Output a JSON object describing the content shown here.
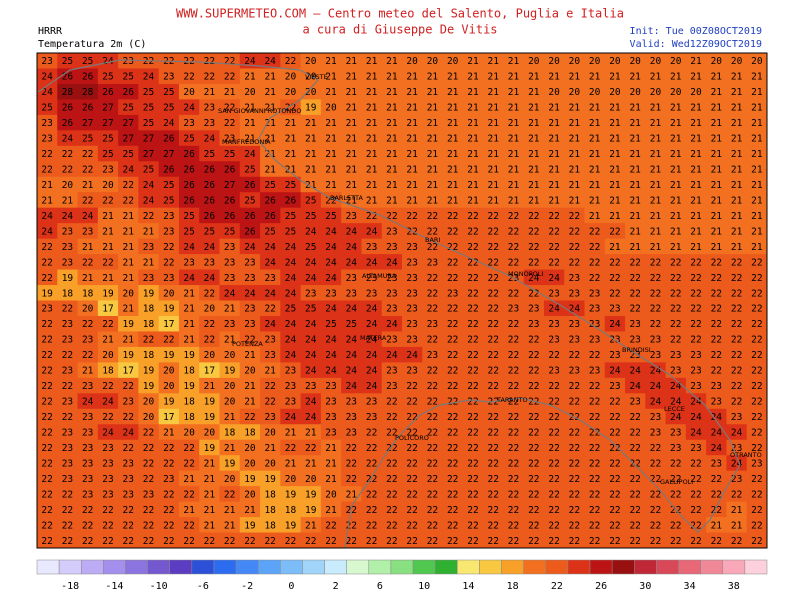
{
  "header": {
    "site": "WWW.SUPERMETEO.COM – Centro meteo del Salento, Puglia e Italia",
    "author": "a cura di Giuseppe De Vitis",
    "model": "HRRR",
    "variable": "Temperatura 2m (C)",
    "init": "Init: Tue 00Z08OCT2019",
    "valid": "Valid: Wed12Z09OCT2019"
  },
  "cities": [
    "VIESTE",
    "SAN GIOVANNI ROTONDO",
    "MANFREDONIA",
    "BARLETTA",
    "BARI",
    "MONOPOLI",
    "ALTAMURA",
    "POTENZA",
    "MATERA",
    "BRINDISI",
    "TARANTO",
    "LECCE",
    "OTRANTO",
    "GALLIPOLI",
    "POLICORO"
  ],
  "grid": {
    "rows": [
      [
        23,
        25,
        25,
        24,
        23,
        22,
        22,
        22,
        22,
        22,
        24,
        24,
        22,
        20,
        21,
        21,
        21,
        21,
        20,
        20,
        20,
        21,
        21,
        21,
        20,
        20,
        20,
        20,
        20,
        20,
        20,
        20,
        21,
        20,
        20,
        20
      ],
      [
        24,
        26,
        26,
        25,
        25,
        24,
        23,
        22,
        22,
        22,
        21,
        21,
        20,
        20,
        21,
        21,
        21,
        21,
        21,
        21,
        21,
        21,
        21,
        21,
        21,
        21,
        21,
        21,
        21,
        21,
        21,
        21,
        21,
        21,
        21,
        21
      ],
      [
        24,
        28,
        28,
        26,
        26,
        25,
        25,
        20,
        21,
        21,
        20,
        21,
        20,
        20,
        21,
        21,
        21,
        21,
        21,
        21,
        21,
        21,
        21,
        21,
        21,
        20,
        20,
        20,
        20,
        20,
        20,
        20,
        20,
        21,
        21,
        21
      ],
      [
        25,
        26,
        26,
        27,
        25,
        25,
        25,
        24,
        23,
        22,
        21,
        21,
        22,
        19,
        20,
        21,
        21,
        21,
        21,
        21,
        21,
        21,
        21,
        21,
        21,
        21,
        21,
        21,
        21,
        21,
        21,
        21,
        21,
        21,
        21,
        21
      ],
      [
        23,
        26,
        27,
        27,
        27,
        25,
        24,
        23,
        23,
        22,
        21,
        21,
        21,
        21,
        21,
        21,
        21,
        21,
        21,
        21,
        21,
        21,
        21,
        21,
        21,
        21,
        21,
        21,
        21,
        21,
        21,
        21,
        21,
        21,
        21,
        21
      ],
      [
        23,
        24,
        25,
        25,
        27,
        27,
        26,
        25,
        24,
        23,
        21,
        21,
        21,
        21,
        21,
        21,
        21,
        21,
        21,
        21,
        21,
        21,
        21,
        21,
        21,
        21,
        21,
        21,
        21,
        21,
        21,
        21,
        21,
        21,
        21,
        21
      ],
      [
        22,
        22,
        22,
        25,
        25,
        27,
        27,
        26,
        25,
        25,
        24,
        21,
        21,
        21,
        21,
        21,
        21,
        21,
        21,
        21,
        21,
        21,
        21,
        21,
        21,
        21,
        21,
        21,
        21,
        21,
        21,
        21,
        21,
        21,
        21,
        21
      ],
      [
        22,
        22,
        22,
        23,
        24,
        25,
        26,
        26,
        26,
        26,
        25,
        21,
        21,
        21,
        21,
        21,
        21,
        21,
        21,
        21,
        21,
        21,
        21,
        21,
        21,
        21,
        21,
        21,
        21,
        21,
        21,
        21,
        21,
        21,
        21,
        21
      ],
      [
        21,
        20,
        21,
        20,
        22,
        24,
        25,
        26,
        26,
        27,
        26,
        25,
        25,
        21,
        21,
        21,
        21,
        21,
        21,
        21,
        21,
        21,
        21,
        21,
        21,
        21,
        21,
        21,
        21,
        21,
        21,
        21,
        21,
        21,
        21,
        21
      ],
      [
        21,
        21,
        22,
        22,
        22,
        24,
        25,
        26,
        26,
        26,
        25,
        26,
        26,
        25,
        22,
        21,
        21,
        21,
        21,
        21,
        21,
        21,
        21,
        21,
        21,
        21,
        21,
        21,
        21,
        21,
        21,
        21,
        21,
        21,
        21,
        21
      ],
      [
        24,
        24,
        24,
        21,
        21,
        22,
        23,
        25,
        26,
        26,
        26,
        26,
        25,
        25,
        25,
        23,
        22,
        22,
        22,
        22,
        22,
        22,
        22,
        22,
        22,
        22,
        22,
        21,
        21,
        21,
        21,
        21,
        21,
        21,
        21,
        21
      ],
      [
        24,
        23,
        23,
        21,
        21,
        21,
        23,
        25,
        25,
        25,
        26,
        25,
        25,
        24,
        24,
        24,
        24,
        23,
        22,
        22,
        22,
        22,
        22,
        22,
        22,
        22,
        22,
        22,
        22,
        21,
        21,
        21,
        21,
        21,
        21,
        21
      ],
      [
        22,
        23,
        21,
        21,
        21,
        23,
        22,
        24,
        24,
        23,
        24,
        24,
        24,
        25,
        24,
        24,
        23,
        23,
        23,
        22,
        22,
        22,
        22,
        22,
        22,
        22,
        22,
        22,
        21,
        21,
        21,
        21,
        21,
        21,
        21,
        21
      ],
      [
        22,
        23,
        22,
        22,
        21,
        21,
        22,
        23,
        23,
        23,
        23,
        24,
        24,
        24,
        24,
        24,
        24,
        24,
        23,
        23,
        22,
        22,
        22,
        22,
        22,
        22,
        22,
        22,
        22,
        22,
        22,
        22,
        22,
        22,
        22,
        22
      ],
      [
        22,
        19,
        21,
        21,
        21,
        23,
        23,
        24,
        24,
        23,
        23,
        23,
        24,
        24,
        24,
        23,
        23,
        23,
        23,
        22,
        22,
        22,
        22,
        23,
        24,
        24,
        23,
        22,
        22,
        22,
        22,
        22,
        22,
        22,
        22,
        22
      ],
      [
        19,
        18,
        18,
        19,
        20,
        19,
        20,
        21,
        22,
        24,
        24,
        24,
        24,
        23,
        23,
        23,
        23,
        23,
        23,
        22,
        23,
        22,
        22,
        22,
        22,
        23,
        23,
        23,
        22,
        22,
        22,
        22,
        22,
        22,
        22,
        22
      ],
      [
        23,
        22,
        20,
        17,
        21,
        18,
        19,
        21,
        20,
        21,
        23,
        22,
        25,
        25,
        24,
        24,
        24,
        23,
        23,
        22,
        22,
        22,
        22,
        23,
        23,
        24,
        24,
        23,
        23,
        22,
        22,
        22,
        22,
        22,
        22,
        22
      ],
      [
        22,
        23,
        22,
        22,
        19,
        18,
        17,
        21,
        22,
        23,
        23,
        24,
        24,
        24,
        25,
        25,
        24,
        24,
        23,
        23,
        22,
        22,
        22,
        22,
        23,
        23,
        23,
        23,
        24,
        23,
        22,
        22,
        22,
        22,
        22,
        22
      ],
      [
        22,
        23,
        23,
        21,
        21,
        22,
        22,
        21,
        22,
        21,
        22,
        23,
        24,
        24,
        24,
        24,
        24,
        23,
        23,
        22,
        22,
        22,
        22,
        22,
        22,
        23,
        23,
        23,
        23,
        23,
        23,
        22,
        22,
        22,
        22,
        22
      ],
      [
        22,
        22,
        22,
        20,
        19,
        18,
        19,
        19,
        20,
        20,
        21,
        23,
        24,
        24,
        24,
        24,
        24,
        24,
        24,
        23,
        22,
        22,
        22,
        22,
        22,
        22,
        22,
        22,
        23,
        23,
        23,
        23,
        23,
        22,
        22,
        22
      ],
      [
        22,
        23,
        21,
        18,
        17,
        19,
        20,
        18,
        17,
        19,
        20,
        21,
        23,
        24,
        24,
        24,
        24,
        23,
        23,
        22,
        22,
        22,
        22,
        22,
        22,
        23,
        23,
        23,
        24,
        24,
        24,
        23,
        23,
        22,
        22,
        22
      ],
      [
        22,
        22,
        23,
        22,
        22,
        19,
        20,
        19,
        21,
        20,
        21,
        22,
        23,
        23,
        23,
        24,
        24,
        23,
        22,
        22,
        22,
        22,
        22,
        22,
        22,
        22,
        22,
        22,
        23,
        24,
        24,
        24,
        23,
        23,
        22,
        22
      ],
      [
        22,
        23,
        24,
        24,
        23,
        20,
        19,
        18,
        19,
        20,
        21,
        22,
        23,
        24,
        23,
        23,
        23,
        22,
        22,
        22,
        22,
        22,
        22,
        22,
        22,
        22,
        22,
        22,
        22,
        23,
        24,
        24,
        24,
        23,
        22,
        22
      ],
      [
        22,
        22,
        23,
        22,
        22,
        20,
        17,
        18,
        19,
        21,
        22,
        23,
        24,
        24,
        23,
        23,
        23,
        22,
        22,
        22,
        22,
        22,
        22,
        22,
        22,
        22,
        22,
        22,
        22,
        22,
        23,
        24,
        24,
        24,
        23,
        22
      ],
      [
        22,
        23,
        23,
        24,
        24,
        22,
        21,
        20,
        20,
        18,
        18,
        20,
        21,
        21,
        23,
        23,
        22,
        22,
        22,
        22,
        22,
        22,
        22,
        22,
        22,
        22,
        22,
        22,
        22,
        22,
        23,
        23,
        24,
        24,
        24,
        22
      ],
      [
        22,
        23,
        23,
        23,
        22,
        22,
        22,
        22,
        19,
        21,
        20,
        21,
        22,
        22,
        21,
        22,
        22,
        22,
        22,
        22,
        22,
        22,
        22,
        22,
        22,
        22,
        22,
        22,
        22,
        22,
        22,
        23,
        23,
        24,
        23,
        22
      ],
      [
        22,
        23,
        23,
        23,
        23,
        22,
        22,
        22,
        21,
        19,
        20,
        20,
        21,
        21,
        21,
        22,
        22,
        22,
        22,
        22,
        22,
        22,
        22,
        22,
        22,
        22,
        22,
        22,
        22,
        22,
        22,
        22,
        22,
        23,
        24,
        23
      ],
      [
        22,
        23,
        23,
        23,
        23,
        22,
        23,
        21,
        21,
        20,
        19,
        19,
        20,
        20,
        21,
        22,
        22,
        22,
        22,
        22,
        22,
        22,
        22,
        22,
        22,
        22,
        22,
        22,
        22,
        22,
        22,
        22,
        22,
        22,
        23,
        22
      ],
      [
        22,
        22,
        23,
        23,
        23,
        23,
        22,
        22,
        21,
        22,
        20,
        18,
        19,
        19,
        20,
        21,
        22,
        22,
        22,
        22,
        22,
        22,
        22,
        22,
        22,
        22,
        22,
        22,
        22,
        22,
        22,
        22,
        22,
        22,
        22,
        22
      ],
      [
        22,
        22,
        22,
        22,
        22,
        22,
        22,
        21,
        21,
        21,
        21,
        18,
        18,
        19,
        21,
        22,
        22,
        22,
        22,
        22,
        22,
        22,
        22,
        22,
        22,
        22,
        22,
        22,
        22,
        22,
        22,
        22,
        22,
        22,
        21,
        22
      ],
      [
        22,
        22,
        22,
        22,
        22,
        22,
        22,
        22,
        21,
        21,
        19,
        18,
        19,
        21,
        22,
        22,
        22,
        22,
        22,
        22,
        22,
        22,
        22,
        22,
        22,
        22,
        22,
        22,
        22,
        22,
        22,
        22,
        22,
        21,
        21,
        22
      ],
      [
        22,
        22,
        22,
        22,
        22,
        22,
        22,
        22,
        22,
        22,
        22,
        22,
        22,
        22,
        22,
        22,
        22,
        22,
        22,
        22,
        22,
        22,
        22,
        22,
        22,
        22,
        22,
        22,
        22,
        22,
        22,
        22,
        22,
        22,
        22,
        22
      ]
    ]
  },
  "colorbar": {
    "ticks": [
      -18,
      -14,
      -10,
      -6,
      -2,
      0,
      2,
      6,
      10,
      14,
      18,
      22,
      26,
      30,
      34,
      38
    ],
    "colors": [
      "#e8e8ff",
      "#d4ccfa",
      "#bcacf4",
      "#a490ec",
      "#8c74e0",
      "#7458d0",
      "#5c3cc0",
      "#2c50d8",
      "#2c6cf0",
      "#4488f8",
      "#5ca4f8",
      "#7cbcf8",
      "#a0d4f8",
      "#c8ecfc",
      "#d8f8d0",
      "#b0f0a8",
      "#88e080",
      "#50c850",
      "#30b030",
      "#f8e870",
      "#f8c840",
      "#f8a028",
      "#f27020",
      "#ec5a1c",
      "#dc3218",
      "#bc1414",
      "#981010",
      "#c02838",
      "#d84858",
      "#e86878",
      "#f08898",
      "#f8a8b8",
      "#fcd0dc"
    ]
  }
}
